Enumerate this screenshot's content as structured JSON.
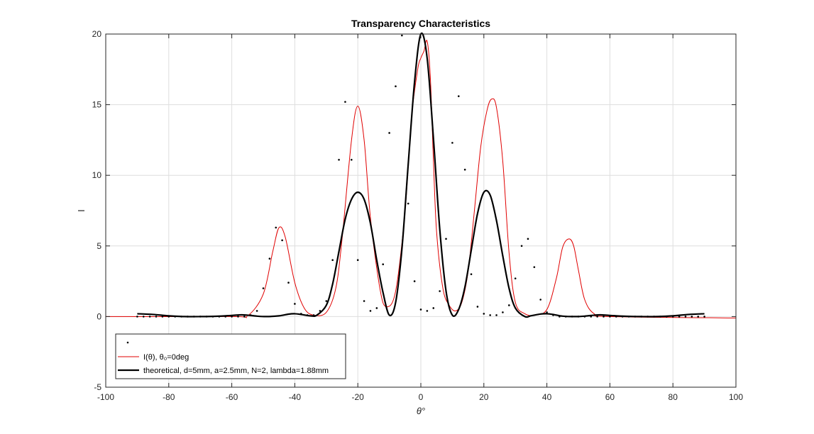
{
  "chart_data": {
    "type": "line",
    "title": "Transparency Characteristics",
    "xlabel": "θ°",
    "ylabel": "I",
    "xlim": [
      -100,
      100
    ],
    "ylim": [
      -5,
      20
    ],
    "xticks": [
      "-100",
      "-80",
      "-60",
      "-40",
      "-20",
      "0",
      "20",
      "40",
      "60",
      "80",
      "100"
    ],
    "yticks": [
      "-5",
      "0",
      "5",
      "10",
      "15",
      "20"
    ],
    "grid": true,
    "legend_placement": "bottom-left",
    "colors": {
      "measured": "#000000",
      "fit": "#e00000",
      "theory": "#000000",
      "grid": "#dedede",
      "axes": "#262626"
    },
    "series": [
      {
        "name": "",
        "style": "dots",
        "x": [
          -90,
          -88,
          -86,
          -84,
          -82,
          -80,
          -78,
          -76,
          -74,
          -72,
          -70,
          -68,
          -66,
          -64,
          -62,
          -60,
          -58,
          -56,
          -54,
          -52,
          -50,
          -48,
          -46,
          -44,
          -42,
          -40,
          -38,
          -36,
          -34,
          -32,
          -30,
          -28,
          -26,
          -24,
          -22,
          -20,
          -18,
          -16,
          -14,
          -12,
          -10,
          -8,
          -6,
          -4,
          -2,
          0,
          2,
          4,
          6,
          8,
          10,
          12,
          14,
          16,
          18,
          20,
          22,
          24,
          26,
          28,
          30,
          32,
          34,
          36,
          38,
          40,
          42,
          44,
          46,
          48,
          50,
          52,
          54,
          56,
          58,
          60,
          62,
          64,
          66,
          68,
          70,
          72,
          74,
          76,
          78,
          80,
          82,
          84,
          86,
          88,
          90
        ],
        "y": [
          0,
          0,
          0,
          0,
          0,
          0,
          0,
          0,
          0,
          0,
          0,
          0,
          0,
          0,
          0,
          0,
          0,
          0,
          0.1,
          0.4,
          2.0,
          4.1,
          6.3,
          5.4,
          2.4,
          0.9,
          0.2,
          0.1,
          0.1,
          0.4,
          1.1,
          4.0,
          11.1,
          15.2,
          11.1,
          4.0,
          1.1,
          0.4,
          0.6,
          3.7,
          13.0,
          16.3,
          19.9,
          8.0,
          2.5,
          0.5,
          0.4,
          0.6,
          1.8,
          5.5,
          12.3,
          15.6,
          10.4,
          3.0,
          0.7,
          0.2,
          0.1,
          0.1,
          0.3,
          0.8,
          2.7,
          5.0,
          5.5,
          3.5,
          1.2,
          0.3,
          0.1,
          0,
          0,
          0,
          0,
          0,
          0,
          0,
          0,
          0,
          0,
          0,
          0,
          0,
          0,
          0,
          0,
          0,
          0,
          0,
          0,
          0,
          0,
          0,
          0
        ]
      },
      {
        "name": "I(θ), θ₀=0deg",
        "style": "thin-line",
        "x": [
          -100,
          -60,
          -55,
          -50,
          -47,
          -45,
          -43,
          -40,
          -37,
          -34,
          -30,
          -27,
          -25,
          -22,
          -20,
          -18,
          -16,
          -13,
          -11,
          -8,
          -5,
          -3,
          -1,
          0,
          1,
          2,
          3,
          4,
          5,
          7,
          9,
          11,
          13,
          15,
          17,
          19,
          21,
          22.5,
          24,
          26,
          28,
          30,
          33,
          36,
          40,
          43,
          45,
          47,
          48.5,
          50,
          52,
          55,
          60,
          100
        ],
        "y": [
          0,
          0,
          0.05,
          1.6,
          4.6,
          6.3,
          5.6,
          2.4,
          0.6,
          0.1,
          0.3,
          2.0,
          5.5,
          12.5,
          14.9,
          12.5,
          7.0,
          2.0,
          0.7,
          1.8,
          7.5,
          14.0,
          17.5,
          18.3,
          18.8,
          19.5,
          17.0,
          11.0,
          6.0,
          2.0,
          0.8,
          0.4,
          1.0,
          3.2,
          7.5,
          12.0,
          14.6,
          15.4,
          14.8,
          11.0,
          4.5,
          1.0,
          0.2,
          0.1,
          0.5,
          2.7,
          4.9,
          5.5,
          5.0,
          3.3,
          1.2,
          0.2,
          0,
          -0.1
        ]
      },
      {
        "name": "theoretical, d=5mm, a=2.5mm, N=2, lambda=1.88mm",
        "style": "thick-line",
        "x": [
          -90,
          -85,
          -80,
          -75,
          -70,
          -65,
          -60,
          -57,
          -55,
          -52,
          -49,
          -45,
          -42,
          -40,
          -38,
          -35,
          -33,
          -30,
          -28,
          -26,
          -24,
          -22,
          -20,
          -18,
          -16,
          -14,
          -12,
          -10,
          -8,
          -6,
          -4,
          -2,
          0,
          2,
          4,
          6,
          8,
          10,
          12,
          14,
          16,
          18,
          20,
          22,
          24,
          26,
          28,
          30,
          33,
          35,
          38,
          40,
          42,
          45,
          49,
          52,
          55,
          57,
          60,
          65,
          70,
          75,
          80,
          85,
          90
        ],
        "y": [
          0.2,
          0.15,
          0.05,
          0,
          0,
          0.02,
          0.08,
          0.12,
          0.1,
          0.03,
          0,
          0.05,
          0.17,
          0.2,
          0.15,
          0.05,
          0.1,
          0.8,
          2.3,
          4.6,
          6.9,
          8.3,
          8.8,
          8.3,
          6.6,
          4.0,
          1.7,
          0.1,
          1.0,
          4.8,
          10.8,
          16.6,
          20.0,
          18.3,
          12.6,
          6.2,
          1.8,
          0.1,
          0.5,
          2.1,
          4.7,
          7.3,
          8.8,
          8.6,
          6.8,
          4.3,
          2.0,
          0.6,
          0,
          0.06,
          0.18,
          0.2,
          0.15,
          0.03,
          0,
          0.03,
          0.1,
          0.12,
          0.08,
          0.02,
          0,
          0,
          0.05,
          0.15,
          0.2
        ]
      }
    ]
  }
}
